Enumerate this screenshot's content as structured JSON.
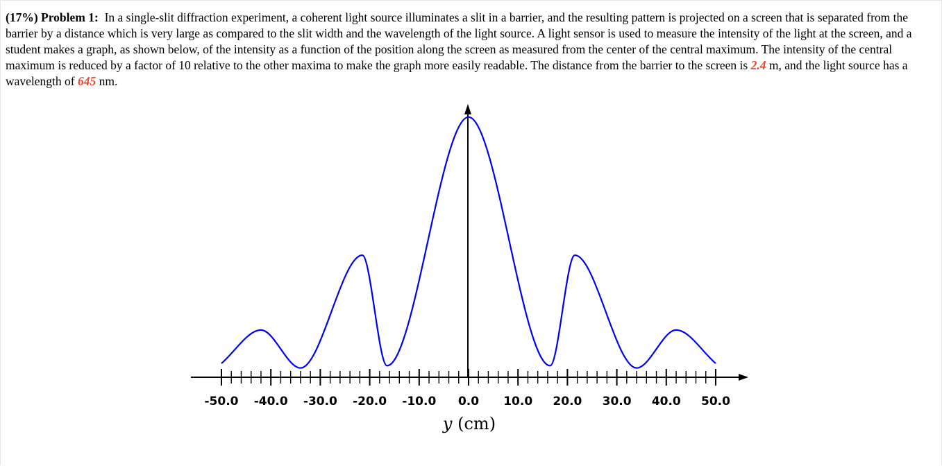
{
  "problem": {
    "weight": "(17%)",
    "label": "Problem 1:",
    "text_before_distance": "In a single-slit diffraction experiment, a coherent light source illuminates a slit in a barrier, and the resulting pattern is projected on a screen that is separated from the barrier by a distance which is very large as compared to the slit width and the wavelength of the light source. A light sensor is used to measure the intensity of the light at the screen, and a student makes a graph, as shown below, of the intensity as a function of the position along the screen as measured from the center of the central maximum. The intensity of the central maximum is reduced by a factor of 10 relative to the other maxima to make the graph more easily readable. The distance from the barrier to the screen is",
    "distance_value": "2.4",
    "text_between": "m, and the light source has a wavelength of",
    "wavelength_value": "645",
    "text_end": "nm."
  },
  "colors": {
    "curve": "#0000ee",
    "highlight": "#e8482d"
  },
  "chart_data": {
    "type": "line",
    "xlabel_var": "y",
    "xlabel_unit": "(cm)",
    "xlim": [
      -50,
      50
    ],
    "x_ticks": [
      "-50.0",
      "-40.0",
      "-30.0",
      "-20.0",
      "-10.0",
      "0.0",
      "10.0",
      "20.0",
      "30.0",
      "40.0",
      "50.0"
    ],
    "minor_tick_step": 2,
    "series": [
      {
        "points": [
          [
            -50,
            0.06
          ],
          [
            -42,
            0.35
          ],
          [
            -34,
            0.02
          ],
          [
            -21.5,
            1.0
          ],
          [
            -16.5,
            0.04
          ],
          [
            0,
            2.2
          ],
          [
            16.5,
            0.04
          ],
          [
            21.5,
            1.0
          ],
          [
            34,
            0.02
          ],
          [
            42,
            0.35
          ],
          [
            50,
            0.06
          ]
        ]
      }
    ]
  }
}
